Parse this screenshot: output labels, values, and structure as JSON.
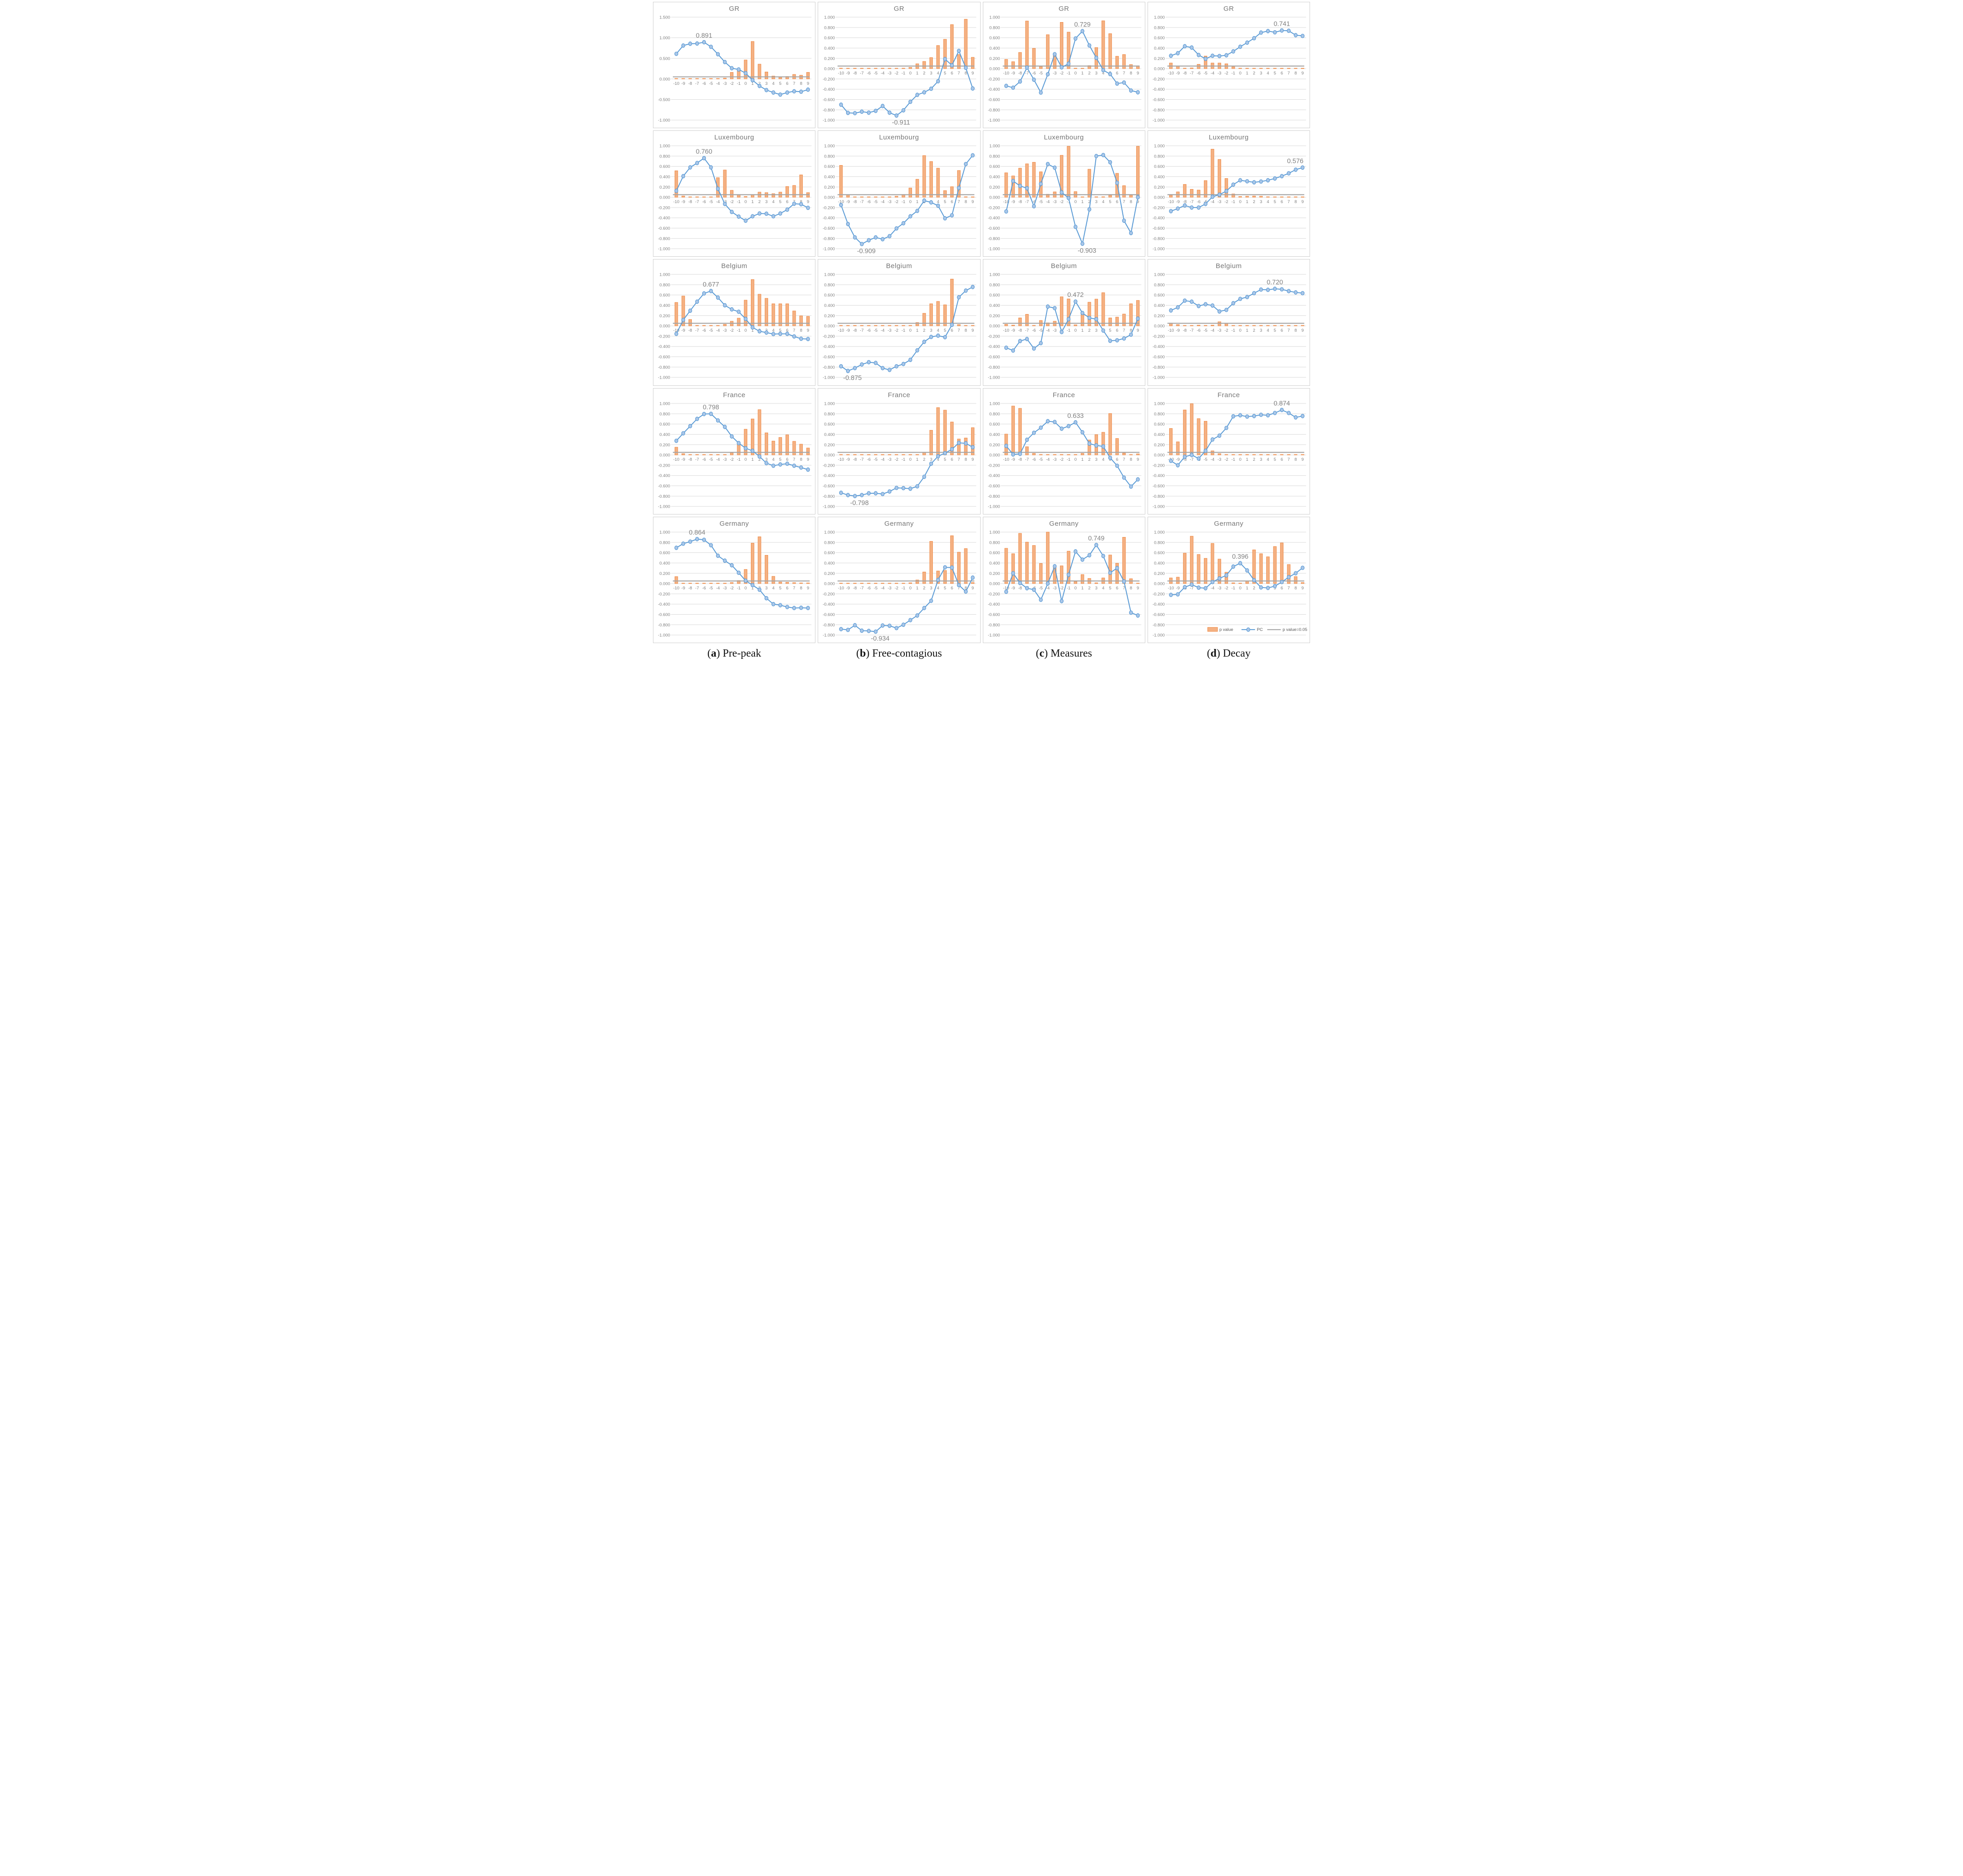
{
  "meta": {
    "x_categories": [
      -10,
      -9,
      -8,
      -7,
      -6,
      -5,
      -4,
      -3,
      -2,
      -1,
      0,
      1,
      2,
      3,
      4,
      5,
      6,
      7,
      8,
      9
    ],
    "threshold_value": 0.05
  },
  "legend": {
    "p_value_label": "p value",
    "pc_label": "PC",
    "threshold_label": "p value=0.05"
  },
  "colors": {
    "bar_fill": "#F4B183",
    "bar_stroke": "#ED7D31",
    "line": "#5B9BD5",
    "marker_fill": "#A9C6E8",
    "threshold": "#A6A6A6",
    "grid": "#D9D9D9",
    "axis_text": "#808080",
    "title_text": "#757575",
    "annotation_text": "#7F7F7F",
    "legend_text": "#595959"
  },
  "captions": [
    {
      "letter": "a",
      "text": "Pre-peak"
    },
    {
      "letter": "b",
      "text": "Free-contagious"
    },
    {
      "letter": "c",
      "text": "Measures"
    },
    {
      "letter": "d",
      "text": "Decay"
    }
  ],
  "chart_data": [
    {
      "type": "bar+line",
      "country": "GR",
      "phase": "Pre-peak",
      "y_min": -1,
      "y_max": 1.5,
      "y_step": 0.5,
      "annotation": {
        "text": "0.891",
        "x": -6,
        "pos": "above"
      },
      "pc": [
        0.61,
        0.81,
        0.855,
        0.86,
        0.891,
        0.78,
        0.6,
        0.41,
        0.26,
        0.23,
        0.14,
        -0.03,
        -0.17,
        -0.27,
        -0.33,
        -0.38,
        -0.33,
        -0.3,
        -0.31,
        -0.26
      ],
      "p_value": [
        0.005,
        0.005,
        0.005,
        0.005,
        0.005,
        0.005,
        0.005,
        0.02,
        0.16,
        0.21,
        0.46,
        0.91,
        0.36,
        0.17,
        0.07,
        0.04,
        0.06,
        0.11,
        0.09,
        0.16
      ]
    },
    {
      "type": "bar+line",
      "country": "GR",
      "phase": "Free-contagious",
      "y_min": -1,
      "y_max": 1,
      "y_step": 0.2,
      "annotation": {
        "text": "-0.911",
        "x": -2,
        "pos": "below"
      },
      "pc": [
        -0.7,
        -0.86,
        -0.865,
        -0.835,
        -0.855,
        -0.82,
        -0.725,
        -0.855,
        -0.911,
        -0.81,
        -0.645,
        -0.51,
        -0.46,
        -0.39,
        -0.245,
        0.185,
        0.065,
        0.345,
        0.015,
        -0.385
      ],
      "p_value": [
        0.01,
        0.005,
        0.005,
        0.005,
        0.005,
        0.005,
        0.01,
        0.005,
        0.005,
        0.01,
        0.025,
        0.095,
        0.14,
        0.215,
        0.45,
        0.57,
        0.855,
        0.275,
        0.96,
        0.22
      ]
    },
    {
      "type": "bar+line",
      "country": "GR",
      "phase": "Measures",
      "y_min": -1,
      "y_max": 1,
      "y_step": 0.2,
      "annotation": {
        "text": "0.729",
        "x": 1,
        "pos": "above"
      },
      "pc": [
        -0.335,
        -0.37,
        -0.25,
        0.02,
        -0.215,
        -0.465,
        -0.11,
        0.28,
        0.025,
        0.095,
        0.585,
        0.729,
        0.45,
        0.21,
        -0.03,
        -0.105,
        -0.29,
        -0.27,
        -0.425,
        -0.46
      ],
      "p_value": [
        0.18,
        0.135,
        0.315,
        0.925,
        0.395,
        0.04,
        0.66,
        0.255,
        0.9,
        0.71,
        0.01,
        0.005,
        0.06,
        0.41,
        0.93,
        0.68,
        0.24,
        0.275,
        0.08,
        0.055
      ]
    },
    {
      "type": "bar+line",
      "country": "GR",
      "phase": "Decay",
      "y_min": -1,
      "y_max": 1,
      "y_step": 0.2,
      "annotation": {
        "text": "0.741",
        "x": 6,
        "pos": "above"
      },
      "pc": [
        0.25,
        0.3,
        0.435,
        0.41,
        0.265,
        0.19,
        0.25,
        0.245,
        0.26,
        0.335,
        0.425,
        0.505,
        0.59,
        0.7,
        0.73,
        0.705,
        0.741,
        0.735,
        0.65,
        0.635
      ],
      "p_value": [
        0.11,
        0.05,
        0.01,
        0.015,
        0.085,
        0.245,
        0.11,
        0.11,
        0.095,
        0.035,
        0.01,
        0.005,
        0.008,
        0.003,
        0.003,
        0.003,
        0.003,
        0.003,
        0.005,
        0.008
      ]
    },
    {
      "type": "bar+line",
      "country": "Luxembourg",
      "phase": "Pre-peak",
      "y_min": -1,
      "y_max": 1,
      "y_step": 0.2,
      "annotation": {
        "text": "0.760",
        "x": -6,
        "pos": "above"
      },
      "pc": [
        0.125,
        0.41,
        0.58,
        0.665,
        0.76,
        0.58,
        0.165,
        -0.13,
        -0.285,
        -0.375,
        -0.455,
        -0.37,
        -0.315,
        -0.32,
        -0.37,
        -0.315,
        -0.24,
        -0.125,
        -0.135,
        -0.205
      ],
      "p_value": [
        0.515,
        0.025,
        0.005,
        0.005,
        0.005,
        0.005,
        0.38,
        0.53,
        0.135,
        0.045,
        0.015,
        0.05,
        0.1,
        0.09,
        0.07,
        0.1,
        0.21,
        0.23,
        0.435,
        0.09
      ]
    },
    {
      "type": "bar+line",
      "country": "Luxembourg",
      "phase": "Free-contagious",
      "y_min": -1,
      "y_max": 1,
      "y_step": 0.2,
      "annotation": {
        "text": "-0.909",
        "x": -7,
        "pos": "below"
      },
      "pc": [
        -0.15,
        -0.52,
        -0.78,
        -0.909,
        -0.835,
        -0.78,
        -0.815,
        -0.755,
        -0.605,
        -0.505,
        -0.37,
        -0.265,
        -0.065,
        -0.1,
        -0.165,
        -0.41,
        -0.35,
        0.18,
        0.645,
        0.815
      ],
      "p_value": [
        0.62,
        0.045,
        0.005,
        0.003,
        0.003,
        0.003,
        0.003,
        0.003,
        0.02,
        0.055,
        0.18,
        0.35,
        0.81,
        0.695,
        0.565,
        0.13,
        0.205,
        0.52,
        0.01,
        0.003
      ]
    },
    {
      "type": "bar+line",
      "country": "Luxembourg",
      "phase": "Measures",
      "y_min": -1,
      "y_max": 1,
      "y_step": 0.2,
      "annotation": {
        "text": "-0.903",
        "x": 1,
        "pos": "below"
      },
      "pc": [
        -0.275,
        0.315,
        0.22,
        0.175,
        -0.175,
        0.26,
        0.645,
        0.575,
        0.095,
        -0.015,
        -0.575,
        -0.903,
        -0.235,
        0.8,
        0.82,
        0.68,
        0.28,
        -0.455,
        -0.695,
        0.0
      ],
      "p_value": [
        0.475,
        0.415,
        0.565,
        0.65,
        0.68,
        0.495,
        0.06,
        0.105,
        0.815,
        0.99,
        0.11,
        0.005,
        0.545,
        0.01,
        0.01,
        0.04,
        0.465,
        0.225,
        0.04,
        0.99
      ]
    },
    {
      "type": "bar+line",
      "country": "Luxembourg",
      "phase": "Decay",
      "y_min": -1,
      "y_max": 1,
      "y_step": 0.2,
      "annotation": {
        "text": "0.576",
        "x": 9,
        "pos": "above"
      },
      "pc": [
        -0.27,
        -0.22,
        -0.16,
        -0.2,
        -0.2,
        -0.13,
        0.01,
        0.05,
        0.12,
        0.245,
        0.33,
        0.31,
        0.29,
        0.305,
        0.33,
        0.365,
        0.41,
        0.465,
        0.535,
        0.576
      ],
      "p_value": [
        0.04,
        0.105,
        0.25,
        0.155,
        0.14,
        0.325,
        0.935,
        0.735,
        0.365,
        0.065,
        0.015,
        0.02,
        0.025,
        0.02,
        0.01,
        0.008,
        0.003,
        0.003,
        0.003,
        0.003
      ]
    },
    {
      "type": "bar+line",
      "country": "Belgium",
      "phase": "Pre-peak",
      "y_min": -1,
      "y_max": 1,
      "y_step": 0.2,
      "annotation": {
        "text": "0.677",
        "x": -5,
        "pos": "above"
      },
      "pc": [
        -0.155,
        0.115,
        0.295,
        0.47,
        0.63,
        0.677,
        0.55,
        0.4,
        0.32,
        0.275,
        0.135,
        -0.03,
        -0.105,
        -0.13,
        -0.16,
        -0.155,
        -0.155,
        -0.205,
        -0.25,
        -0.255
      ],
      "p_value": [
        0.455,
        0.58,
        0.125,
        0.01,
        0.005,
        0.008,
        0.008,
        0.03,
        0.09,
        0.15,
        0.5,
        0.9,
        0.615,
        0.535,
        0.43,
        0.43,
        0.43,
        0.29,
        0.195,
        0.185
      ]
    },
    {
      "type": "bar+line",
      "country": "Belgium",
      "phase": "Free-contagious",
      "y_min": -1,
      "y_max": 1,
      "y_step": 0.2,
      "annotation": {
        "text": "-0.875",
        "x": -9,
        "pos": "below"
      },
      "pc": [
        -0.785,
        -0.875,
        -0.82,
        -0.75,
        -0.705,
        -0.72,
        -0.82,
        -0.855,
        -0.785,
        -0.74,
        -0.66,
        -0.475,
        -0.31,
        -0.215,
        -0.19,
        -0.22,
        0.02,
        0.555,
        0.685,
        0.755
      ],
      "p_value": [
        0.003,
        0.003,
        0.003,
        0.003,
        0.005,
        0.003,
        0.003,
        0.003,
        0.003,
        0.003,
        0.01,
        0.065,
        0.245,
        0.43,
        0.475,
        0.41,
        0.91,
        0.025,
        0.005,
        0.003
      ]
    },
    {
      "type": "bar+line",
      "country": "Belgium",
      "phase": "Measures",
      "y_min": -1,
      "y_max": 1,
      "y_step": 0.2,
      "annotation": {
        "text": "0.472",
        "x": 0,
        "pos": "above"
      },
      "pc": [
        -0.425,
        -0.48,
        -0.295,
        -0.255,
        -0.44,
        -0.335,
        0.375,
        0.345,
        -0.12,
        0.13,
        0.472,
        0.25,
        0.155,
        0.13,
        -0.09,
        -0.29,
        -0.28,
        -0.245,
        -0.17,
        0.14
      ],
      "p_value": [
        0.03,
        0.015,
        0.155,
        0.225,
        0.01,
        0.105,
        0.06,
        0.09,
        0.565,
        0.525,
        0.02,
        0.24,
        0.46,
        0.52,
        0.645,
        0.155,
        0.17,
        0.23,
        0.43,
        0.495
      ]
    },
    {
      "type": "bar+line",
      "country": "Belgium",
      "phase": "Decay",
      "y_min": -1,
      "y_max": 1,
      "y_step": 0.2,
      "annotation": {
        "text": "0.720",
        "x": 5,
        "pos": "above"
      },
      "pc": [
        0.3,
        0.36,
        0.49,
        0.47,
        0.385,
        0.42,
        0.395,
        0.28,
        0.31,
        0.44,
        0.525,
        0.56,
        0.635,
        0.705,
        0.7,
        0.72,
        0.71,
        0.675,
        0.65,
        0.635
      ],
      "p_value": [
        0.055,
        0.025,
        0.005,
        0.005,
        0.015,
        0.01,
        0.015,
        0.08,
        0.05,
        0.008,
        0.008,
        0.005,
        0.005,
        0.003,
        0.003,
        0.003,
        0.003,
        0.005,
        0.005,
        0.01
      ]
    },
    {
      "type": "bar+line",
      "country": "France",
      "phase": "Pre-peak",
      "y_min": -1,
      "y_max": 1,
      "y_step": 0.2,
      "annotation": {
        "text": "0.798",
        "x": -5,
        "pos": "above"
      },
      "pc": [
        0.275,
        0.42,
        0.56,
        0.7,
        0.795,
        0.798,
        0.67,
        0.545,
        0.36,
        0.23,
        0.13,
        0.08,
        -0.03,
        -0.16,
        -0.21,
        -0.185,
        -0.17,
        -0.21,
        -0.245,
        -0.285
      ],
      "p_value": [
        0.15,
        0.025,
        0.003,
        0.003,
        0.003,
        0.003,
        0.003,
        0.003,
        0.04,
        0.22,
        0.5,
        0.7,
        0.88,
        0.43,
        0.27,
        0.34,
        0.39,
        0.265,
        0.21,
        0.135
      ]
    },
    {
      "type": "bar+line",
      "country": "France",
      "phase": "Free-contagious",
      "y_min": -1,
      "y_max": 1,
      "y_step": 0.2,
      "annotation": {
        "text": "-0.798",
        "x": -8,
        "pos": "below"
      },
      "pc": [
        -0.735,
        -0.78,
        -0.798,
        -0.78,
        -0.745,
        -0.745,
        -0.76,
        -0.71,
        -0.64,
        -0.645,
        -0.655,
        -0.61,
        -0.425,
        -0.17,
        -0.025,
        0.035,
        0.11,
        0.235,
        0.225,
        0.15
      ],
      "p_value": [
        0.003,
        0.003,
        0.003,
        0.003,
        0.003,
        0.003,
        0.003,
        0.003,
        0.003,
        0.003,
        0.003,
        0.005,
        0.05,
        0.48,
        0.92,
        0.87,
        0.64,
        0.31,
        0.33,
        0.53
      ]
    },
    {
      "type": "bar+line",
      "country": "France",
      "phase": "Measures",
      "y_min": -1,
      "y_max": 1,
      "y_step": 0.2,
      "annotation": {
        "text": "0.633",
        "x": 0,
        "pos": "above"
      },
      "pc": [
        0.175,
        0.01,
        0.02,
        0.295,
        0.43,
        0.53,
        0.655,
        0.64,
        0.51,
        0.56,
        0.633,
        0.44,
        0.22,
        0.185,
        0.165,
        -0.055,
        -0.21,
        -0.44,
        -0.615,
        -0.475
      ],
      "p_value": [
        0.405,
        0.95,
        0.905,
        0.16,
        0.03,
        0.01,
        0.005,
        0.005,
        0.01,
        0.008,
        0.005,
        0.03,
        0.29,
        0.395,
        0.44,
        0.805,
        0.32,
        0.035,
        0.005,
        0.02
      ]
    },
    {
      "type": "bar+line",
      "country": "France",
      "phase": "Decay",
      "y_min": -1,
      "y_max": 1,
      "y_step": 0.2,
      "annotation": {
        "text": "0.874",
        "x": 6,
        "pos": "above"
      },
      "pc": [
        -0.115,
        -0.2,
        -0.035,
        0.0,
        -0.07,
        0.08,
        0.3,
        0.375,
        0.525,
        0.75,
        0.77,
        0.745,
        0.755,
        0.78,
        0.77,
        0.815,
        0.874,
        0.815,
        0.73,
        0.755
      ],
      "p_value": [
        0.515,
        0.255,
        0.875,
        0.995,
        0.705,
        0.655,
        0.08,
        0.025,
        0.005,
        0.003,
        0.003,
        0.003,
        0.003,
        0.003,
        0.003,
        0.003,
        0.003,
        0.003,
        0.005,
        0.003
      ]
    },
    {
      "type": "bar+line",
      "country": "Germany",
      "phase": "Pre-peak",
      "y_min": -1,
      "y_max": 1,
      "y_step": 0.2,
      "annotation": {
        "text": "0.864",
        "x": -7,
        "pos": "above"
      },
      "pc": [
        0.695,
        0.775,
        0.815,
        0.864,
        0.85,
        0.745,
        0.54,
        0.445,
        0.355,
        0.21,
        0.055,
        -0.03,
        -0.12,
        -0.285,
        -0.4,
        -0.42,
        -0.455,
        -0.475,
        -0.47,
        -0.475
      ],
      "p_value": [
        0.135,
        0.008,
        0.008,
        0.003,
        0.003,
        0.003,
        0.008,
        0.008,
        0.02,
        0.06,
        0.275,
        0.785,
        0.91,
        0.55,
        0.14,
        0.03,
        0.025,
        0.018,
        0.012,
        0.012
      ]
    },
    {
      "type": "bar+line",
      "country": "Germany",
      "phase": "Free-contagious",
      "y_min": -1,
      "y_max": 1,
      "y_step": 0.2,
      "annotation": {
        "text": "-0.934",
        "x": -5,
        "pos": "below"
      },
      "pc": [
        -0.885,
        -0.9,
        -0.81,
        -0.915,
        -0.92,
        -0.934,
        -0.815,
        -0.82,
        -0.865,
        -0.8,
        -0.71,
        -0.62,
        -0.475,
        -0.335,
        0.07,
        0.315,
        0.31,
        -0.03,
        -0.155,
        0.115
      ],
      "p_value": [
        0.005,
        0.005,
        0.005,
        0.005,
        0.003,
        0.003,
        0.005,
        0.005,
        0.005,
        0.008,
        0.015,
        0.07,
        0.225,
        0.82,
        0.245,
        0.255,
        0.93,
        0.61,
        0.68,
        0.02
      ]
    },
    {
      "type": "bar+line",
      "country": "Germany",
      "phase": "Measures",
      "y_min": -1,
      "y_max": 1,
      "y_step": 0.2,
      "annotation": {
        "text": "0.749",
        "x": 3,
        "pos": "above"
      },
      "pc": [
        -0.16,
        0.2,
        0.01,
        -0.09,
        -0.12,
        -0.315,
        0.0,
        0.335,
        -0.34,
        0.17,
        0.625,
        0.465,
        0.55,
        0.749,
        0.535,
        0.21,
        0.3,
        0.04,
        -0.565,
        -0.62
      ],
      "p_value": [
        0.685,
        0.58,
        0.975,
        0.805,
        0.74,
        0.39,
        1.0,
        0.31,
        0.345,
        0.63,
        0.04,
        0.175,
        0.1,
        0.015,
        0.11,
        0.555,
        0.395,
        0.9,
        0.095,
        0.005
      ]
    },
    {
      "type": "bar+line",
      "country": "Germany",
      "phase": "Decay",
      "y_min": -1,
      "y_max": 1,
      "y_step": 0.2,
      "show_legend": true,
      "annotation": {
        "text": "0.396",
        "x": 0,
        "pos": "above"
      },
      "pc": [
        -0.22,
        -0.21,
        -0.07,
        -0.02,
        -0.08,
        -0.09,
        0.03,
        0.1,
        0.16,
        0.33,
        0.396,
        0.255,
        0.065,
        -0.075,
        -0.085,
        -0.05,
        0.03,
        0.125,
        0.2,
        0.305
      ],
      "p_value": [
        0.11,
        0.125,
        0.59,
        0.92,
        0.565,
        0.49,
        0.78,
        0.475,
        0.22,
        0.015,
        0.008,
        0.045,
        0.655,
        0.58,
        0.52,
        0.72,
        0.79,
        0.37,
        0.135,
        0.02
      ]
    }
  ]
}
